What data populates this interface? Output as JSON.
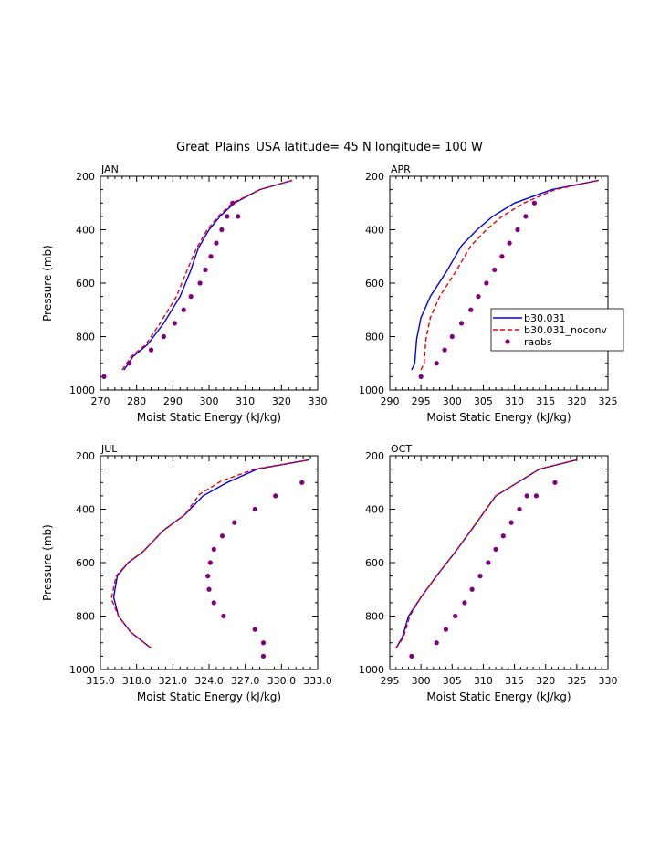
{
  "figure_title": "Great_Plains_USA  latitude= 45 N longitude= 100 W",
  "colors": {
    "model": "#0000ee",
    "noconv": "#ee0000",
    "raobs": "#800080"
  },
  "chart_data": [
    {
      "type": "line",
      "panel": "JAN",
      "xlabel": "Moist Static Energy (kJ/kg)",
      "ylabel": "Pressure (mb)",
      "xlim": [
        270,
        330
      ],
      "xticks": [
        270,
        280,
        290,
        300,
        310,
        320,
        330
      ],
      "xtick_labels": [
        "270",
        "280",
        "290",
        "300",
        "310",
        "320",
        "330"
      ],
      "ylim": [
        200,
        1000
      ],
      "yticks": [
        200,
        400,
        600,
        800,
        1000
      ],
      "ytick_labels": [
        "200",
        "400",
        "600",
        "800",
        "1000"
      ],
      "series": [
        {
          "name": "b30.031",
          "style": "solid",
          "color": "#0000ee",
          "x": [
            276.5,
            279,
            283,
            287.5,
            292,
            295,
            297,
            300,
            303,
            307,
            314,
            323
          ],
          "y": [
            925,
            875,
            830,
            750,
            650,
            550,
            470,
            400,
            350,
            300,
            250,
            215
          ]
        },
        {
          "name": "b30.031_noconv",
          "style": "dashed",
          "color": "#ee0000",
          "x": [
            276,
            278.5,
            282.5,
            286.5,
            291,
            294,
            296.5,
            299.5,
            302.5,
            306.5,
            314,
            323
          ],
          "y": [
            925,
            875,
            830,
            750,
            650,
            550,
            470,
            400,
            350,
            300,
            250,
            215
          ]
        },
        {
          "name": "raobs",
          "style": "dots",
          "color": "#800080",
          "x": [
            271,
            278,
            284,
            287.5,
            290.5,
            293,
            295,
            297.5,
            299,
            300.5,
            302,
            303.5,
            305,
            306.5,
            308
          ],
          "y": [
            950,
            900,
            850,
            800,
            750,
            700,
            650,
            600,
            550,
            500,
            450,
            400,
            350,
            300,
            350
          ]
        }
      ]
    },
    {
      "type": "line",
      "panel": "APR",
      "xlabel": "Moist Static Energy (kJ/kg)",
      "ylabel": "",
      "xlim": [
        290,
        325
      ],
      "xticks": [
        290,
        295,
        300,
        305,
        310,
        315,
        320,
        325
      ],
      "xtick_labels": [
        "290",
        "295",
        "300",
        "305",
        "310",
        "315",
        "320",
        "325"
      ],
      "ylim": [
        200,
        1000
      ],
      "yticks": [
        200,
        400,
        600,
        800,
        1000
      ],
      "ytick_labels": [
        "200",
        "400",
        "600",
        "800",
        "1000"
      ],
      "legend": {
        "position": "right",
        "entries": [
          "b30.031",
          "b30.031_noconv",
          "raobs"
        ]
      },
      "series": [
        {
          "name": "b30.031",
          "style": "solid",
          "color": "#0000ee",
          "x": [
            293.5,
            294,
            294.3,
            295,
            296.5,
            299,
            301.5,
            304,
            306.5,
            310,
            316,
            323.5
          ],
          "y": [
            925,
            900,
            810,
            730,
            650,
            560,
            460,
            400,
            350,
            300,
            250,
            215
          ]
        },
        {
          "name": "b30.031_noconv",
          "style": "dashed",
          "color": "#ee0000",
          "x": [
            295,
            295.5,
            295.8,
            296.5,
            298,
            300.5,
            303,
            305.5,
            308,
            311.5,
            316.5,
            323.5
          ],
          "y": [
            925,
            900,
            810,
            730,
            650,
            560,
            460,
            400,
            350,
            300,
            250,
            215
          ]
        },
        {
          "name": "raobs",
          "style": "dots",
          "color": "#800080",
          "x": [
            295,
            297.5,
            298.8,
            300,
            301.5,
            303,
            304.2,
            305.5,
            306.8,
            308,
            309.2,
            310.5,
            311.8,
            313.2
          ],
          "y": [
            950,
            900,
            850,
            800,
            750,
            700,
            650,
            600,
            550,
            500,
            450,
            400,
            350,
            300
          ]
        }
      ]
    },
    {
      "type": "line",
      "panel": "JUL",
      "xlabel": "Moist Static Energy (kJ/kg)",
      "ylabel": "Pressure (mb)",
      "xlim": [
        315,
        333
      ],
      "xticks": [
        315,
        318,
        321,
        324,
        327,
        330,
        333
      ],
      "xtick_labels": [
        "315.0",
        "318.0",
        "321.0",
        "324.0",
        "327.0",
        "330.0",
        "333.0"
      ],
      "ylim": [
        200,
        1000
      ],
      "yticks": [
        200,
        400,
        600,
        800,
        1000
      ],
      "ytick_labels": [
        "200",
        "400",
        "600",
        "800",
        "1000"
      ],
      "series": [
        {
          "name": "b30.031",
          "style": "solid",
          "color": "#0000ee",
          "x": [
            319.2,
            317.5,
            316.5,
            316.1,
            316.4,
            317.3,
            318.5,
            320.2,
            322,
            323.5,
            325.5,
            328,
            332.3
          ],
          "y": [
            920,
            860,
            800,
            730,
            650,
            600,
            560,
            480,
            420,
            350,
            300,
            250,
            215
          ]
        },
        {
          "name": "b30.031_noconv",
          "style": "dashed",
          "color": "#ee0000",
          "x": [
            319.2,
            317.5,
            316.5,
            315.9,
            316.3,
            317.3,
            318.5,
            320.2,
            322,
            323.2,
            325,
            327.8,
            332.3
          ],
          "y": [
            920,
            860,
            800,
            735,
            650,
            600,
            560,
            480,
            420,
            345,
            295,
            250,
            215
          ]
        },
        {
          "name": "raobs",
          "style": "dots",
          "color": "#800080",
          "x": [
            328.5,
            328.5,
            327.8,
            325.2,
            324.4,
            324,
            323.9,
            324.1,
            324.4,
            325.1,
            326.1,
            327.8,
            329.5,
            331.7
          ],
          "y": [
            950,
            900,
            850,
            800,
            750,
            700,
            650,
            600,
            550,
            500,
            450,
            400,
            350,
            300
          ]
        }
      ]
    },
    {
      "type": "line",
      "panel": "OCT",
      "xlabel": "Moist Static Energy (kJ/kg)",
      "ylabel": "",
      "xlim": [
        295,
        330
      ],
      "xticks": [
        295,
        300,
        305,
        310,
        315,
        320,
        325,
        330
      ],
      "xtick_labels": [
        "295",
        "300",
        "305",
        "310",
        "315",
        "320",
        "325",
        "330"
      ],
      "ylim": [
        200,
        1000
      ],
      "yticks": [
        200,
        400,
        600,
        800,
        1000
      ],
      "ytick_labels": [
        "200",
        "400",
        "600",
        "800",
        "1000"
      ],
      "series": [
        {
          "name": "b30.031",
          "style": "solid",
          "color": "#0000ee",
          "x": [
            296,
            297,
            298,
            300,
            302.5,
            305.5,
            308,
            312,
            315.5,
            319,
            325
          ],
          "y": [
            920,
            880,
            800,
            730,
            650,
            560,
            480,
            350,
            300,
            250,
            215
          ]
        },
        {
          "name": "b30.031_noconv",
          "style": "dashed",
          "color": "#ee0000",
          "x": [
            296,
            297.2,
            298.2,
            300,
            302.5,
            305.5,
            308,
            312,
            315.5,
            319,
            325
          ],
          "y": [
            920,
            880,
            800,
            730,
            650,
            560,
            480,
            350,
            300,
            250,
            215
          ]
        },
        {
          "name": "raobs",
          "style": "dots",
          "color": "#800080",
          "x": [
            298.5,
            302.5,
            304,
            305.5,
            307,
            308.2,
            309.5,
            310.8,
            312,
            313.2,
            314.5,
            315.8,
            317,
            318.5,
            321.5
          ],
          "y": [
            950,
            900,
            850,
            800,
            750,
            700,
            650,
            600,
            550,
            500,
            450,
            400,
            350,
            350,
            300
          ]
        }
      ]
    }
  ]
}
